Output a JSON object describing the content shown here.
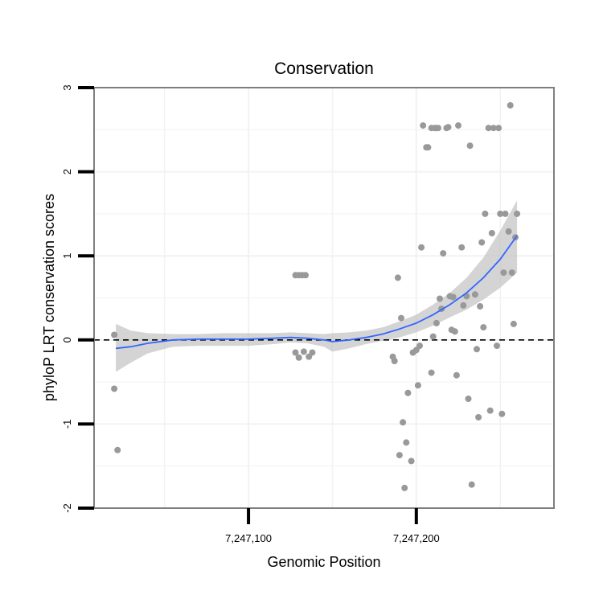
{
  "chart_data": {
    "type": "scatter",
    "title": "Conservation",
    "xlabel": "Genomic Position",
    "ylabel": "phyloP LRT conservation scores",
    "xlim": [
      7247008,
      7247282
    ],
    "ylim": [
      -2,
      3
    ],
    "x_ticks": [
      {
        "value": 7247100,
        "label": "7,247,100"
      },
      {
        "value": 7247200,
        "label": "7,247,200"
      }
    ],
    "y_ticks": [
      {
        "value": -2,
        "label": "-2"
      },
      {
        "value": -1,
        "label": "-1"
      },
      {
        "value": 0,
        "label": "0"
      },
      {
        "value": 1,
        "label": "1"
      },
      {
        "value": 2,
        "label": "2"
      },
      {
        "value": 3,
        "label": "3"
      }
    ],
    "grid": true,
    "reference_line": {
      "y": 0,
      "style": "dashed",
      "color": "#000000"
    },
    "colors": {
      "points": "#999999",
      "smooth_line": "#3366ff",
      "confidence_band": "#bdbdbd",
      "panel_border": "#7f7f7f",
      "grid": "#f2f2f2"
    },
    "points": [
      [
        7247020,
        0.06
      ],
      [
        7247020,
        -0.58
      ],
      [
        7247022,
        -1.31
      ],
      [
        7247128,
        0.77
      ],
      [
        7247130,
        0.77
      ],
      [
        7247132,
        0.77
      ],
      [
        7247134,
        0.77
      ],
      [
        7247128,
        -0.15
      ],
      [
        7247130,
        -0.21
      ],
      [
        7247133,
        -0.14
      ],
      [
        7247136,
        -0.2
      ],
      [
        7247138,
        -0.15
      ],
      [
        7247186,
        -0.2
      ],
      [
        7247187,
        -0.25
      ],
      [
        7247189,
        0.74
      ],
      [
        7247191,
        0.26
      ],
      [
        7247190,
        -1.37
      ],
      [
        7247192,
        -0.98
      ],
      [
        7247193,
        -1.76
      ],
      [
        7247194,
        -1.22
      ],
      [
        7247195,
        -0.63
      ],
      [
        7247197,
        -1.44
      ],
      [
        7247198,
        -0.15
      ],
      [
        7247200,
        -0.12
      ],
      [
        7247201,
        -0.54
      ],
      [
        7247202,
        -0.07
      ],
      [
        7247203,
        1.1
      ],
      [
        7247204,
        2.55
      ],
      [
        7247206,
        2.29
      ],
      [
        7247207,
        2.29
      ],
      [
        7247209,
        2.52
      ],
      [
        7247211,
        2.52
      ],
      [
        7247212,
        2.52
      ],
      [
        7247213,
        2.52
      ],
      [
        7247209,
        -0.39
      ],
      [
        7247210,
        0.04
      ],
      [
        7247212,
        0.2
      ],
      [
        7247214,
        0.49
      ],
      [
        7247215,
        0.37
      ],
      [
        7247216,
        1.03
      ],
      [
        7247218,
        2.52
      ],
      [
        7247219,
        2.53
      ],
      [
        7247220,
        0.52
      ],
      [
        7247221,
        0.12
      ],
      [
        7247222,
        0.51
      ],
      [
        7247223,
        0.1
      ],
      [
        7247224,
        -0.42
      ],
      [
        7247225,
        2.55
      ],
      [
        7247227,
        1.1
      ],
      [
        7247228,
        0.41
      ],
      [
        7247230,
        0.52
      ],
      [
        7247231,
        -0.7
      ],
      [
        7247232,
        2.31
      ],
      [
        7247233,
        -1.72
      ],
      [
        7247235,
        0.54
      ],
      [
        7247236,
        -0.11
      ],
      [
        7247237,
        -0.92
      ],
      [
        7247238,
        0.4
      ],
      [
        7247239,
        1.16
      ],
      [
        7247240,
        0.15
      ],
      [
        7247241,
        1.5
      ],
      [
        7247243,
        2.52
      ],
      [
        7247244,
        -0.84
      ],
      [
        7247245,
        1.27
      ],
      [
        7247246,
        2.52
      ],
      [
        7247248,
        -0.07
      ],
      [
        7247249,
        2.52
      ],
      [
        7247250,
        1.5
      ],
      [
        7247251,
        -0.88
      ],
      [
        7247252,
        0.8
      ],
      [
        7247253,
        1.5
      ],
      [
        7247255,
        1.29
      ],
      [
        7247256,
        2.79
      ],
      [
        7247257,
        0.8
      ],
      [
        7247258,
        0.19
      ],
      [
        7247259,
        1.22
      ],
      [
        7247260,
        1.5
      ]
    ],
    "smooth_fit": {
      "x": [
        7247021,
        7247030,
        7247040,
        7247055,
        7247070,
        7247085,
        7247100,
        7247115,
        7247125,
        7247135,
        7247145,
        7247150,
        7247160,
        7247170,
        7247180,
        7247190,
        7247200,
        7247210,
        7247220,
        7247230,
        7247240,
        7247250,
        7247260
      ],
      "y": [
        -0.1,
        -0.08,
        -0.04,
        0.0,
        0.01,
        0.01,
        0.01,
        0.02,
        0.03,
        0.02,
        0.0,
        -0.02,
        0.0,
        0.03,
        0.07,
        0.13,
        0.2,
        0.3,
        0.42,
        0.56,
        0.74,
        0.96,
        1.24
      ],
      "lower": [
        -0.38,
        -0.27,
        -0.16,
        -0.08,
        -0.07,
        -0.07,
        -0.07,
        -0.05,
        -0.03,
        -0.04,
        -0.08,
        -0.14,
        -0.1,
        -0.05,
        -0.01,
        0.03,
        0.09,
        0.17,
        0.27,
        0.36,
        0.48,
        0.62,
        0.8
      ],
      "upper": [
        0.19,
        0.11,
        0.08,
        0.07,
        0.07,
        0.08,
        0.08,
        0.08,
        0.09,
        0.08,
        0.07,
        0.08,
        0.09,
        0.11,
        0.15,
        0.22,
        0.3,
        0.42,
        0.56,
        0.74,
        0.98,
        1.3,
        1.66
      ]
    }
  }
}
